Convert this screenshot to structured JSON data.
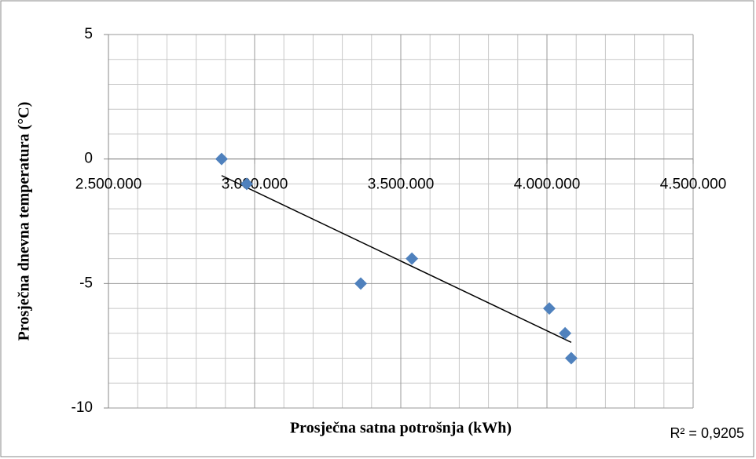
{
  "chart_data": {
    "type": "scatter",
    "x_label": "Prosječna satna potrošnja (kWh)",
    "y_label": "Prosječna dnevna temperatura (°C)",
    "annotation": "R² = 0,9205",
    "trendline": "linear",
    "series": [
      {
        "color": "#4f81bd",
        "x": [
          2887000,
          2973000,
          3363000,
          3538000,
          4008000,
          4062000,
          4083000
        ],
        "values": [
          0,
          -1,
          -5,
          -4,
          -6,
          -7,
          -8
        ]
      }
    ],
    "xlim": [
      2500000,
      4500000
    ],
    "xticks": [
      {
        "value": 2500000,
        "label": "2.500.000"
      },
      {
        "value": 3000000,
        "label": "3.000.000"
      },
      {
        "value": 3500000,
        "label": "3.500.000"
      },
      {
        "value": 4000000,
        "label": "4.000.000"
      },
      {
        "value": 4500000,
        "label": "4.500.000"
      }
    ],
    "ylim": [
      -10,
      5
    ],
    "yticks": [
      5,
      0,
      -5,
      -10
    ],
    "grid": true
  }
}
